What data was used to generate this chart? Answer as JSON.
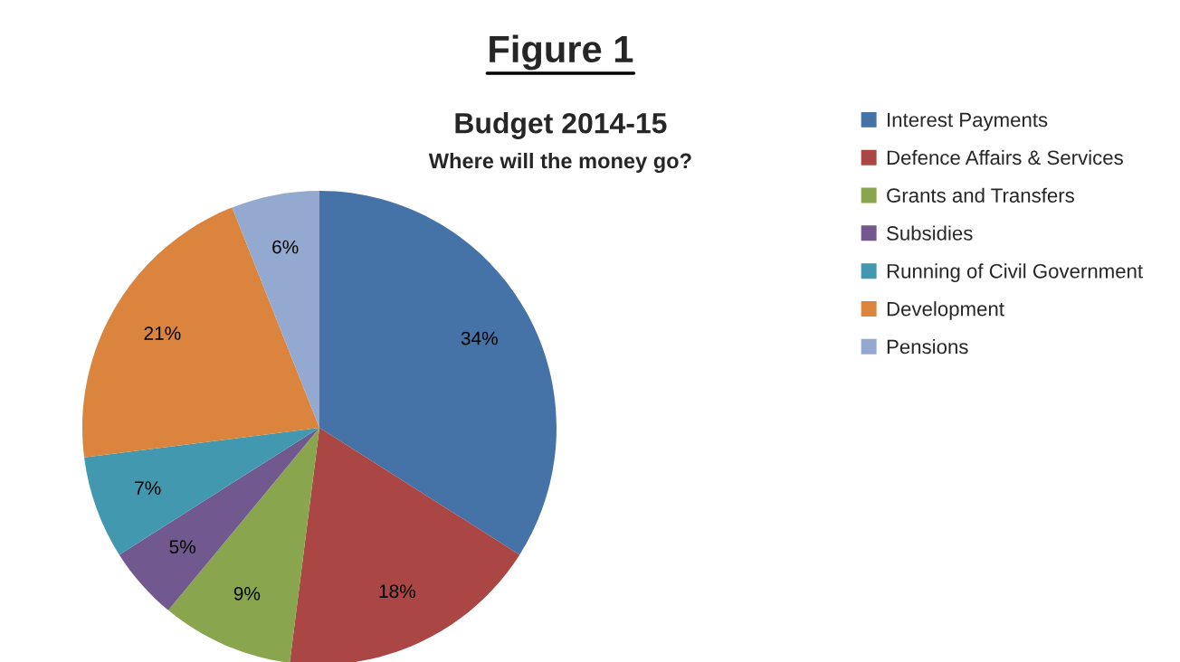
{
  "chart_data": {
    "type": "pie",
    "title": "Budget 2014-15",
    "subtitle": "Where will the money go?",
    "annotations": [
      "Figure 1"
    ],
    "categories": [
      "Interest Payments",
      "Defence Affairs & Services",
      "Grants and Transfers",
      "Subsidies",
      "Running of Civil Government",
      "Development",
      "Pensions"
    ],
    "values": [
      34,
      18,
      9,
      5,
      7,
      21,
      6
    ],
    "colors": [
      "#4572a7",
      "#aa4643",
      "#89a54e",
      "#71588f",
      "#4198af",
      "#db843d",
      "#93a9cf"
    ],
    "value_labels": [
      "34%",
      "18%",
      "9%",
      "5%",
      "7%",
      "21%",
      "6%"
    ],
    "legend": "right"
  }
}
